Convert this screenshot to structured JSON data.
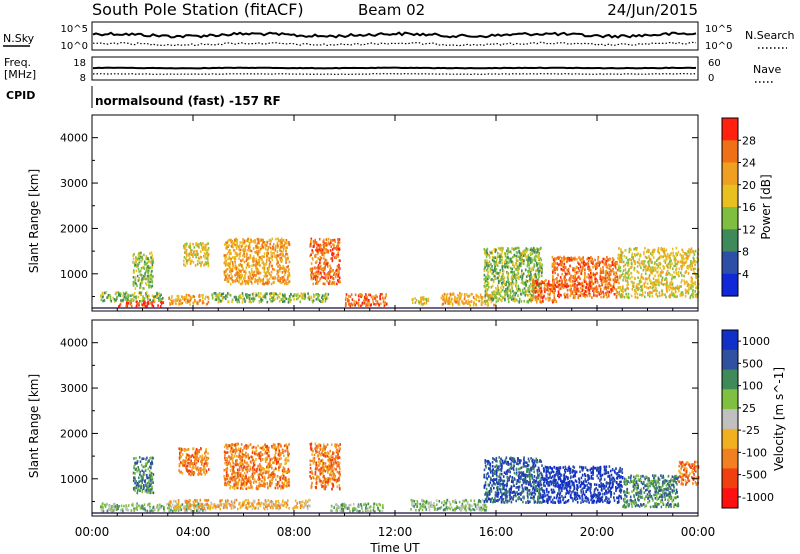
{
  "header": {
    "station": "South Pole Station (fitACF)",
    "beam": "Beam 02",
    "date": "24/Jun/2015"
  },
  "strip": {
    "nsky_label": "N.Sky",
    "nsky_ticks": [
      "10^5",
      "10^0"
    ],
    "nsearch_label": "N.Search",
    "nsearch_ticks": [
      "10^5",
      "10^0"
    ],
    "freq_label_1": "Freq.",
    "freq_label_2": "[MHz]",
    "freq_ticks": [
      "18",
      "8"
    ],
    "nave_label": "Nave",
    "nave_ticks": [
      "60",
      "0"
    ],
    "cpid_label": "CPID",
    "cpid_text": "normalsound (fast) -157 RF"
  },
  "chart_data": [
    {
      "type": "heatmap",
      "quantity": "Power",
      "ylabel": "Slant Range [km]",
      "xlabel": "Time UT",
      "x_range_hours": [
        0,
        24
      ],
      "y_range_km": [
        180,
        4500
      ],
      "yticks": [
        "1000",
        "2000",
        "3000",
        "4000"
      ],
      "xticks": [
        "00:00",
        "04:00",
        "08:00",
        "12:00",
        "16:00",
        "20:00",
        "00:00"
      ],
      "colorbar_label": "Power [dB]",
      "colorbar_ticks": [
        "4",
        "8",
        "12",
        "16",
        "20",
        "24",
        "28"
      ],
      "colorbar_colors": [
        "#1028d8",
        "#2d4fa8",
        "#3f8a5a",
        "#7fbf3f",
        "#e8c020",
        "#f0a020",
        "#f07018",
        "#ff2010"
      ],
      "clusters": [
        {
          "t": [
            1.0,
            2.8
          ],
          "r": [
            300,
            420
          ],
          "level": 7
        },
        {
          "t": [
            0.3,
            2.8
          ],
          "r": [
            420,
            620
          ],
          "level": 3
        },
        {
          "t": [
            1.6,
            2.4
          ],
          "r": [
            700,
            1500
          ],
          "level": 3
        },
        {
          "t": [
            3.0,
            4.6
          ],
          "r": [
            350,
            560
          ],
          "level": 5
        },
        {
          "t": [
            3.6,
            4.6
          ],
          "r": [
            1200,
            1700
          ],
          "level": 4
        },
        {
          "t": [
            5.2,
            7.8
          ],
          "r": [
            800,
            1800
          ],
          "level": 5
        },
        {
          "t": [
            4.7,
            9.4
          ],
          "r": [
            400,
            600
          ],
          "level": 3
        },
        {
          "t": [
            8.6,
            9.8
          ],
          "r": [
            800,
            1800
          ],
          "level": 6
        },
        {
          "t": [
            10.0,
            11.7
          ],
          "r": [
            320,
            580
          ],
          "level": 6
        },
        {
          "t": [
            12.6,
            13.3
          ],
          "r": [
            350,
            520
          ],
          "level": 4
        },
        {
          "t": [
            13.8,
            16.0
          ],
          "r": [
            330,
            600
          ],
          "level": 5
        },
        {
          "t": [
            15.5,
            17.8
          ],
          "r": [
            400,
            1600
          ],
          "level": 3
        },
        {
          "t": [
            17.4,
            18.4
          ],
          "r": [
            400,
            900
          ],
          "level": 6
        },
        {
          "t": [
            18.2,
            20.8
          ],
          "r": [
            500,
            1400
          ],
          "level": 6
        },
        {
          "t": [
            20.8,
            24.0
          ],
          "r": [
            500,
            1600
          ],
          "level": 4
        }
      ]
    },
    {
      "type": "heatmap",
      "quantity": "Velocity",
      "ylabel": "Slant Range [km]",
      "xlabel": "Time UT",
      "x_range_hours": [
        0,
        24
      ],
      "y_range_km": [
        180,
        4500
      ],
      "yticks": [
        "1000",
        "2000",
        "3000",
        "4000"
      ],
      "xticks": [
        "00:00",
        "04:00",
        "08:00",
        "12:00",
        "16:00",
        "20:00",
        "00:00"
      ],
      "colorbar_label": "Velocity [m s^-1]",
      "colorbar_ticks": [
        "1000",
        "500",
        "100",
        "25",
        "-25",
        "-100",
        "-500",
        "-1000"
      ],
      "colorbar_colors": [
        "#1030c8",
        "#3050a0",
        "#3f8a5a",
        "#80c040",
        "#c0c0c0",
        "#f0b020",
        "#f08020",
        "#f04010",
        "#ff1010"
      ],
      "clusters": [
        {
          "t": [
            0.3,
            4.6
          ],
          "r": [
            300,
            480
          ],
          "level": 3
        },
        {
          "t": [
            1.6,
            2.4
          ],
          "r": [
            700,
            1500
          ],
          "level": 2
        },
        {
          "t": [
            3.4,
            4.6
          ],
          "r": [
            1100,
            1700
          ],
          "level": 6
        },
        {
          "t": [
            3.0,
            8.6
          ],
          "r": [
            360,
            560
          ],
          "level": 5
        },
        {
          "t": [
            5.2,
            7.8
          ],
          "r": [
            800,
            1800
          ],
          "level": 6
        },
        {
          "t": [
            8.6,
            9.8
          ],
          "r": [
            800,
            1800
          ],
          "level": 6
        },
        {
          "t": [
            9.4,
            11.5
          ],
          "r": [
            300,
            480
          ],
          "level": 3
        },
        {
          "t": [
            12.6,
            15.6
          ],
          "r": [
            330,
            560
          ],
          "level": 3
        },
        {
          "t": [
            15.5,
            17.8
          ],
          "r": [
            500,
            1500
          ],
          "level": 1
        },
        {
          "t": [
            17.8,
            21.0
          ],
          "r": [
            500,
            1300
          ],
          "level": 0
        },
        {
          "t": [
            21.0,
            23.2
          ],
          "r": [
            400,
            1100
          ],
          "level": 2
        },
        {
          "t": [
            23.2,
            24.0
          ],
          "r": [
            900,
            1400
          ],
          "level": 6
        }
      ]
    }
  ]
}
